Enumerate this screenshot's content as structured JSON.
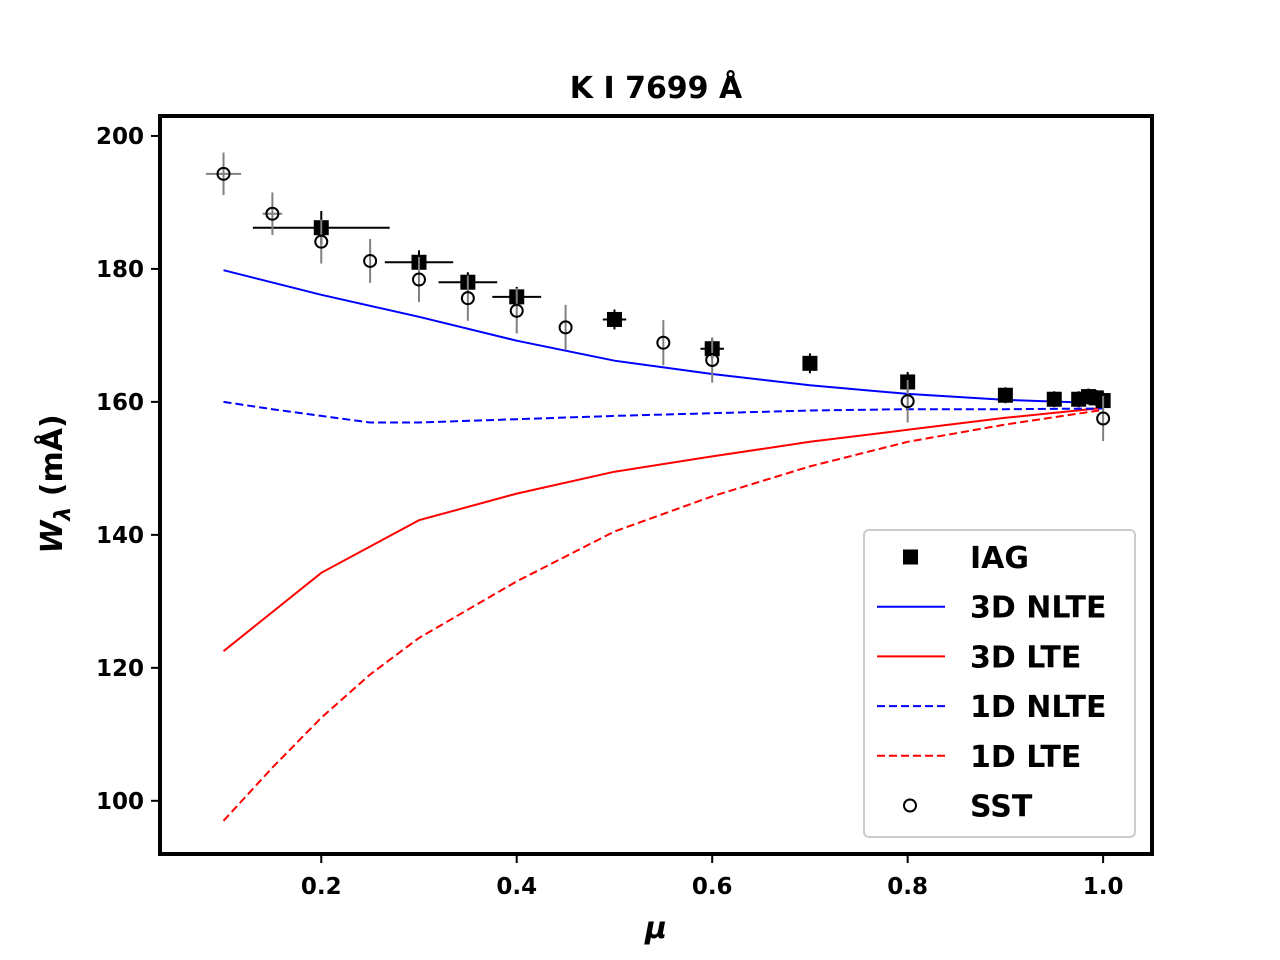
{
  "chart_data": {
    "type": "line",
    "title": "K I 7699 Å",
    "xlabel": "μ",
    "ylabel_main": "W",
    "ylabel_sub": "λ",
    "ylabel_units": " (mÅ)",
    "xlim": [
      0.035,
      1.05
    ],
    "ylim": [
      92,
      203
    ],
    "xticks": [
      0.2,
      0.4,
      0.6,
      0.8,
      1.0
    ],
    "xtick_labels": [
      "0.2",
      "0.4",
      "0.6",
      "0.8",
      "1.0"
    ],
    "yticks": [
      100,
      120,
      140,
      160,
      180,
      200
    ],
    "ytick_labels": [
      "100",
      "120",
      "140",
      "160",
      "180",
      "200"
    ],
    "grid": false,
    "legend_position": "lower-right",
    "series": [
      {
        "name": "IAG",
        "kind": "points",
        "marker": "square",
        "color": "#000000",
        "points": [
          {
            "x": 0.2,
            "y": 186.2,
            "xerr": 0.07,
            "yerr": 2.5
          },
          {
            "x": 0.3,
            "y": 181.0,
            "xerr": 0.035,
            "yerr": 1.8
          },
          {
            "x": 0.35,
            "y": 178.0,
            "xerr": 0.03,
            "yerr": 1.5
          },
          {
            "x": 0.4,
            "y": 175.8,
            "xerr": 0.025,
            "yerr": 1.5
          },
          {
            "x": 0.5,
            "y": 172.4,
            "xerr": 0.012,
            "yerr": 1.5
          },
          {
            "x": 0.6,
            "y": 168.0,
            "xerr": 0.012,
            "yerr": 1.5
          },
          {
            "x": 0.7,
            "y": 165.8,
            "xerr": 0.0,
            "yerr": 1.5
          },
          {
            "x": 0.8,
            "y": 163.0,
            "xerr": 0.0,
            "yerr": 1.5
          },
          {
            "x": 0.9,
            "y": 161.0,
            "xerr": 0.0,
            "yerr": 1.2
          },
          {
            "x": 0.95,
            "y": 160.4,
            "xerr": 0.0,
            "yerr": 1.2
          },
          {
            "x": 0.975,
            "y": 160.4,
            "xerr": 0.0,
            "yerr": 1.2
          },
          {
            "x": 0.985,
            "y": 160.8,
            "xerr": 0.0,
            "yerr": 1.2
          },
          {
            "x": 0.993,
            "y": 160.6,
            "xerr": 0.0,
            "yerr": 1.2
          },
          {
            "x": 1.0,
            "y": 160.2,
            "xerr": 0.0,
            "yerr": 1.2
          }
        ]
      },
      {
        "name": "3D NLTE",
        "kind": "line",
        "color": "#0000ff",
        "dash": "solid",
        "x": [
          0.1,
          0.2,
          0.3,
          0.4,
          0.5,
          0.6,
          0.7,
          0.8,
          0.9,
          1.0
        ],
        "y": [
          179.8,
          176.1,
          172.8,
          169.2,
          166.2,
          164.2,
          162.5,
          161.2,
          160.3,
          159.8
        ]
      },
      {
        "name": "3D LTE",
        "kind": "line",
        "color": "#ff0000",
        "dash": "solid",
        "x": [
          0.1,
          0.2,
          0.3,
          0.4,
          0.5,
          0.6,
          0.7,
          0.8,
          0.9,
          1.0
        ],
        "y": [
          122.5,
          134.3,
          142.2,
          146.2,
          149.5,
          151.8,
          154.0,
          155.8,
          157.6,
          159.1
        ]
      },
      {
        "name": "1D NLTE",
        "kind": "line",
        "color": "#0000ff",
        "dash": "dashed",
        "x": [
          0.1,
          0.15,
          0.2,
          0.25,
          0.3,
          0.4,
          0.5,
          0.6,
          0.7,
          0.8,
          0.9,
          1.0
        ],
        "y": [
          160.0,
          158.9,
          157.9,
          156.9,
          156.9,
          157.4,
          157.9,
          158.3,
          158.7,
          158.9,
          158.9,
          159.0
        ]
      },
      {
        "name": "1D LTE",
        "kind": "line",
        "color": "#ff0000",
        "dash": "dashed",
        "x": [
          0.1,
          0.15,
          0.2,
          0.25,
          0.3,
          0.4,
          0.5,
          0.6,
          0.7,
          0.8,
          0.9,
          1.0
        ],
        "y": [
          97.0,
          105.0,
          112.5,
          119.0,
          124.5,
          133.0,
          140.5,
          145.8,
          150.3,
          154.0,
          156.6,
          158.8
        ]
      },
      {
        "name": "SST",
        "kind": "points",
        "marker": "circle",
        "color": "#000000",
        "errcolor": "#808080",
        "points": [
          {
            "x": 0.1,
            "y": 194.3,
            "xerr": 0.018,
            "yerr": 3.2
          },
          {
            "x": 0.15,
            "y": 188.3,
            "xerr": 0.01,
            "yerr": 3.2
          },
          {
            "x": 0.2,
            "y": 184.1,
            "xerr": 0.0,
            "yerr": 3.3
          },
          {
            "x": 0.25,
            "y": 181.2,
            "xerr": 0.0,
            "yerr": 3.3
          },
          {
            "x": 0.3,
            "y": 178.4,
            "xerr": 0.0,
            "yerr": 3.4
          },
          {
            "x": 0.35,
            "y": 175.6,
            "xerr": 0.0,
            "yerr": 3.4
          },
          {
            "x": 0.4,
            "y": 173.7,
            "xerr": 0.0,
            "yerr": 3.4
          },
          {
            "x": 0.45,
            "y": 171.2,
            "xerr": 0.0,
            "yerr": 3.4
          },
          {
            "x": 0.55,
            "y": 168.9,
            "xerr": 0.0,
            "yerr": 3.4
          },
          {
            "x": 0.6,
            "y": 166.3,
            "xerr": 0.0,
            "yerr": 3.4
          },
          {
            "x": 0.8,
            "y": 160.1,
            "xerr": 0.0,
            "yerr": 3.2
          },
          {
            "x": 1.0,
            "y": 157.5,
            "xerr": 0.0,
            "yerr": 3.4
          }
        ]
      }
    ]
  }
}
